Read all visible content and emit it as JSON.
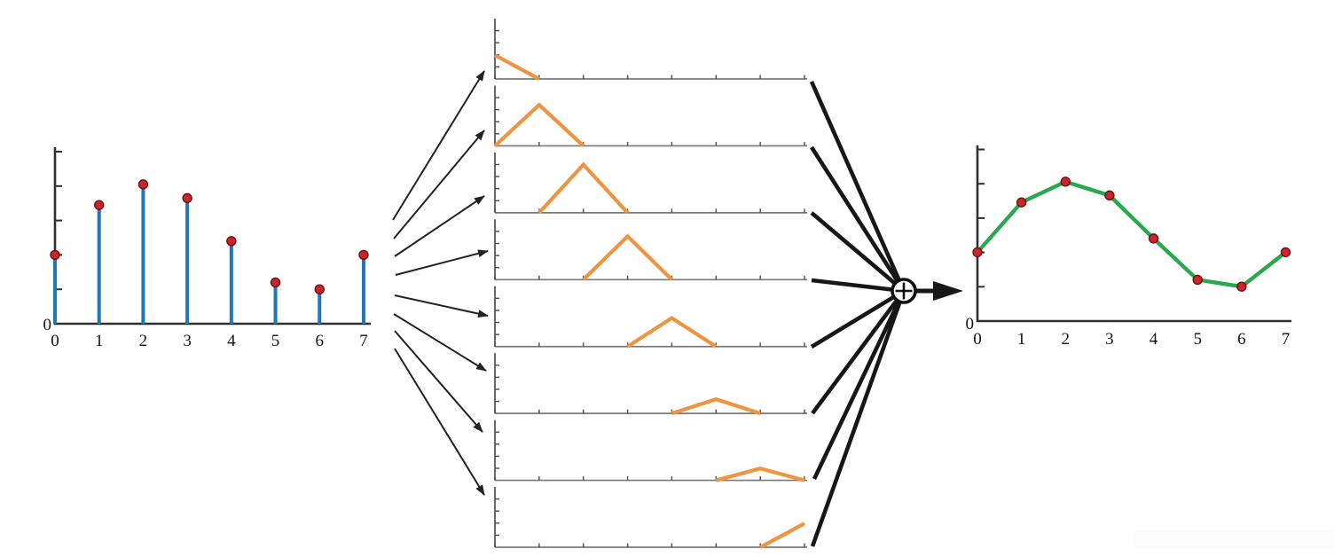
{
  "figure": {
    "sum_node_symbol": "+"
  },
  "colors": {
    "stem": "#2177b4",
    "marker_fill": "#c9252b",
    "marker_edge": "#6e1113",
    "pulse": "#ef9440",
    "output_line": "#29a84d",
    "axis_dark": "#2f2f2f",
    "axis_mid": "#7a7a7a",
    "tick_mid": "#4d4d4d",
    "arrow_thin": "#232323",
    "arrow_thick": "#171717",
    "label": "#121212"
  },
  "chart_data": [
    {
      "type": "stem",
      "id": "input-samples",
      "x": [
        0,
        1,
        2,
        3,
        4,
        5,
        6,
        7
      ],
      "values": [
        0.4,
        0.69,
        0.81,
        0.73,
        0.48,
        0.24,
        0.2,
        0.4
      ],
      "x_tick_labels": [
        "0",
        "1",
        "2",
        "3",
        "4",
        "5",
        "6",
        "7"
      ],
      "y_origin_label": "0",
      "xlim": [
        0,
        7
      ],
      "ylim": [
        0,
        1
      ],
      "y_tick_step": 0.2,
      "grid": false,
      "stem_color": "#2177b4",
      "marker_color": "#c9252b"
    },
    {
      "type": "line",
      "id": "triangular-basis-pulses",
      "note_subplot_count": 8,
      "xlim": [
        0,
        7
      ],
      "ylim": [
        0,
        1
      ],
      "line_color": "#ef9440",
      "subplots": [
        {
          "center": 0,
          "peak": 0.4,
          "x": [
            0,
            1
          ],
          "y": [
            0.4,
            0
          ]
        },
        {
          "center": 1,
          "peak": 0.69,
          "x": [
            0,
            1,
            2
          ],
          "y": [
            0,
            0.69,
            0
          ]
        },
        {
          "center": 2,
          "peak": 0.81,
          "x": [
            1,
            2,
            3
          ],
          "y": [
            0,
            0.81,
            0
          ]
        },
        {
          "center": 3,
          "peak": 0.73,
          "x": [
            2,
            3,
            4
          ],
          "y": [
            0,
            0.73,
            0
          ]
        },
        {
          "center": 4,
          "peak": 0.48,
          "x": [
            3,
            4,
            5
          ],
          "y": [
            0,
            0.48,
            0
          ]
        },
        {
          "center": 5,
          "peak": 0.24,
          "x": [
            4,
            5,
            6
          ],
          "y": [
            0,
            0.24,
            0
          ]
        },
        {
          "center": 6,
          "peak": 0.2,
          "x": [
            5,
            6,
            7
          ],
          "y": [
            0,
            0.2,
            0
          ]
        },
        {
          "center": 7,
          "peak": 0.4,
          "x": [
            6,
            7
          ],
          "y": [
            0,
            0.4
          ]
        }
      ]
    },
    {
      "type": "line",
      "id": "interpolated-output",
      "x": [
        0,
        1,
        2,
        3,
        4,
        5,
        6,
        7
      ],
      "values": [
        0.4,
        0.69,
        0.81,
        0.73,
        0.48,
        0.24,
        0.2,
        0.4
      ],
      "x_tick_labels": [
        "0",
        "1",
        "2",
        "3",
        "4",
        "5",
        "6",
        "7"
      ],
      "y_origin_label": "0",
      "xlim": [
        0,
        7
      ],
      "ylim": [
        0,
        1
      ],
      "y_tick_step": 0.2,
      "grid": false,
      "line_color": "#29a84d",
      "marker_color": "#c9252b"
    }
  ]
}
